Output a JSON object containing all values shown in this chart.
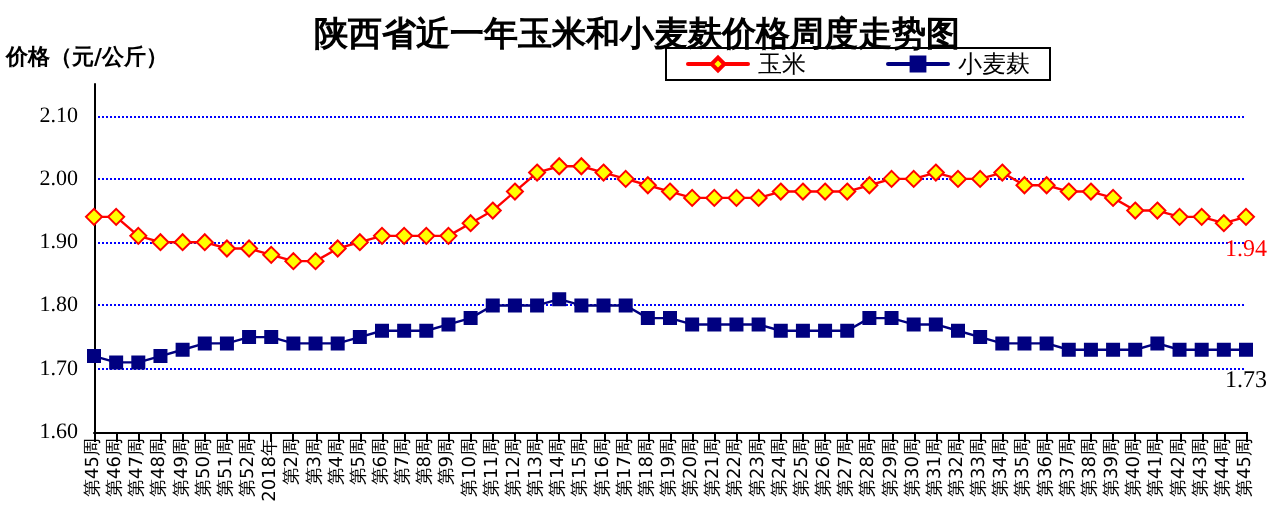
{
  "chart_data": {
    "type": "line",
    "title": "陕西省近一年玉米和小麦麸价格周度走势图",
    "ylabel": "价格（元/公斤）",
    "categories": [
      "第45周",
      "第46周",
      "第47周",
      "第48周",
      "第49周",
      "第50周",
      "第51周",
      "第52周",
      "2018年",
      "第2周",
      "第3周",
      "第4周",
      "第5周",
      "第6周",
      "第7周",
      "第8周",
      "第9周",
      "第10周",
      "第11周",
      "第12周",
      "第13周",
      "第14周",
      "第15周",
      "第16周",
      "第17周",
      "第18周",
      "第19周",
      "第20周",
      "第21周",
      "第22周",
      "第23周",
      "第24周",
      "第25周",
      "第26周",
      "第27周",
      "第28周",
      "第29周",
      "第30周",
      "第31周",
      "第32周",
      "第33周",
      "第34周",
      "第35周",
      "第36周",
      "第37周",
      "第38周",
      "第39周",
      "第40周",
      "第41周",
      "第42周",
      "第43周",
      "第44周",
      "第45周"
    ],
    "series": [
      {
        "name": "玉米",
        "color": "#ff0000",
        "marker": "diamond",
        "values": [
          1.94,
          1.94,
          1.91,
          1.9,
          1.9,
          1.9,
          1.89,
          1.89,
          1.88,
          1.87,
          1.87,
          1.89,
          1.9,
          1.91,
          1.91,
          1.91,
          1.91,
          1.93,
          1.95,
          1.98,
          2.01,
          2.02,
          2.02,
          2.01,
          2.0,
          1.99,
          1.98,
          1.97,
          1.97,
          1.97,
          1.97,
          1.98,
          1.98,
          1.98,
          1.98,
          1.99,
          2.0,
          2.0,
          2.01,
          2.0,
          2.0,
          2.01,
          1.99,
          1.99,
          1.98,
          1.98,
          1.97,
          1.95,
          1.95,
          1.94,
          1.94,
          1.93,
          1.94
        ],
        "value_labels": [
          null,
          null,
          null,
          null,
          null,
          null,
          null,
          null,
          null,
          null,
          null,
          null,
          null,
          null,
          null,
          null,
          null,
          null,
          null,
          null,
          null,
          null,
          null,
          null,
          null,
          null,
          null,
          null,
          null,
          null,
          null,
          null,
          null,
          null,
          null,
          null,
          null,
          null,
          null,
          null,
          null,
          null,
          null,
          null,
          null,
          null,
          null,
          null,
          null,
          null,
          null,
          null,
          "1.94"
        ]
      },
      {
        "name": "小麦麸",
        "color": "#000080",
        "marker": "square",
        "values": [
          1.72,
          1.71,
          1.71,
          1.72,
          1.73,
          1.74,
          1.74,
          1.75,
          1.75,
          1.74,
          1.74,
          1.74,
          1.75,
          1.76,
          1.76,
          1.76,
          1.77,
          1.78,
          1.8,
          1.8,
          1.8,
          1.81,
          1.8,
          1.8,
          1.8,
          1.78,
          1.78,
          1.77,
          1.77,
          1.77,
          1.77,
          1.76,
          1.76,
          1.76,
          1.76,
          1.78,
          1.78,
          1.77,
          1.77,
          1.76,
          1.75,
          1.74,
          1.74,
          1.74,
          1.73,
          1.73,
          1.73,
          1.73,
          1.74,
          1.73,
          1.73,
          1.73,
          1.73
        ],
        "value_labels": [
          null,
          null,
          null,
          null,
          null,
          null,
          null,
          null,
          null,
          null,
          null,
          null,
          null,
          null,
          null,
          null,
          null,
          null,
          null,
          null,
          null,
          null,
          null,
          null,
          null,
          null,
          null,
          null,
          null,
          null,
          null,
          null,
          null,
          null,
          null,
          null,
          null,
          null,
          null,
          null,
          null,
          null,
          null,
          null,
          null,
          null,
          null,
          null,
          null,
          null,
          null,
          null,
          "1.73"
        ]
      }
    ],
    "ylim": [
      1.6,
      2.15
    ],
    "yticks": [
      {
        "value": 1.6,
        "label": "1.60"
      },
      {
        "value": 1.7,
        "label": "1.70"
      },
      {
        "value": 1.8,
        "label": "1.80"
      },
      {
        "value": 1.9,
        "label": "1.90"
      },
      {
        "value": 2.0,
        "label": "2.00"
      },
      {
        "value": 2.1,
        "label": "2.10"
      }
    ],
    "grid": "y",
    "legend": "top right",
    "line_style": "solid"
  }
}
